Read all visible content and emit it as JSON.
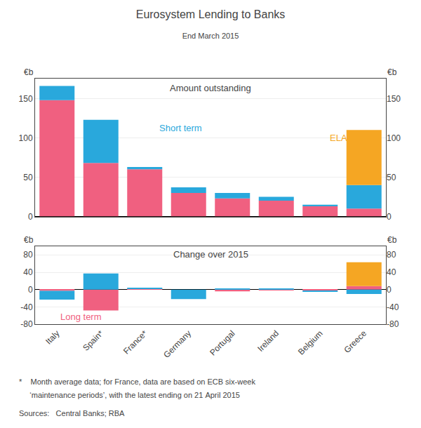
{
  "title": "Eurosystem Lending to Banks",
  "subtitle": "End March 2015",
  "footnotes": [
    "*    Month average data; for France, data are based on ECB six-week",
    "     ‘maintenance periods’, with the latest ending on 21 April 2015",
    "Sources:   Central Banks; RBA"
  ],
  "chart_data": [
    {
      "type": "bar",
      "stacked": true,
      "title": "Amount outstanding",
      "ylabel": "€b",
      "categories": [
        "Italy",
        "Spain*",
        "France*",
        "Germany",
        "Portugal",
        "Ireland",
        "Belgium",
        "Greece"
      ],
      "series": [
        {
          "name": "Long term",
          "color": "#F06080",
          "values": [
            148,
            68,
            60,
            30,
            23,
            20,
            13,
            10
          ]
        },
        {
          "name": "Short term",
          "color": "#29A8DC",
          "values": [
            18,
            55,
            3,
            7,
            7,
            5,
            2,
            30
          ]
        },
        {
          "name": "ELA",
          "color": "#F5A623",
          "values": [
            0,
            0,
            0,
            0,
            0,
            0,
            0,
            70
          ]
        }
      ],
      "annotations": [
        "Short term",
        "ELA"
      ],
      "ylim": [
        0,
        175
      ],
      "yticks": [
        0,
        50,
        100,
        150
      ],
      "grid": true,
      "tick_labels": "y"
    },
    {
      "type": "bar",
      "stacked": true,
      "title": "Change over 2015",
      "ylabel": "€b",
      "categories": [
        "Italy",
        "Spain*",
        "France*",
        "Germany",
        "Portugal",
        "Ireland",
        "Belgium",
        "Greece"
      ],
      "series": [
        {
          "name": "Long term",
          "color": "#F06080",
          "values": [
            -3,
            -48,
            2,
            0,
            -4,
            -2,
            -3,
            8
          ]
        },
        {
          "name": "Short term",
          "color": "#29A8DC",
          "values": [
            -20,
            37,
            2,
            -22,
            2,
            2,
            -2,
            -10
          ]
        },
        {
          "name": "ELA",
          "color": "#F5A623",
          "values": [
            0,
            0,
            0,
            0,
            0,
            0,
            0,
            55
          ]
        }
      ],
      "annotations": [
        "Long term"
      ],
      "ylim": [
        -80,
        100
      ],
      "yticks": [
        -80,
        -40,
        0,
        40,
        80
      ],
      "grid": true
    }
  ]
}
